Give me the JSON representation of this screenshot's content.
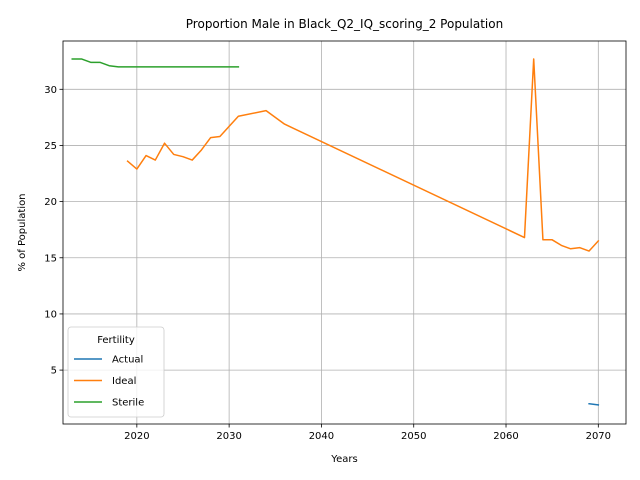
{
  "chart_data": {
    "type": "line",
    "title": "Proportion Male in Black_Q2_IQ_scoring_2 Population",
    "xlabel": "Years",
    "ylabel": "% of Population",
    "xlim": [
      2012,
      2073
    ],
    "ylim": [
      0.2,
      34.3
    ],
    "xticks": [
      2020,
      2030,
      2040,
      2050,
      2060,
      2070
    ],
    "yticks": [
      5,
      10,
      15,
      20,
      25,
      30
    ],
    "grid": true,
    "legend": {
      "title": "Fertility",
      "position": "lower-left"
    },
    "series": [
      {
        "name": "Actual",
        "color": "#1f77b4",
        "x": [
          2069,
          2070
        ],
        "y": [
          2.0,
          1.9
        ]
      },
      {
        "name": "Ideal",
        "color": "#ff7f0e",
        "x": [
          2019,
          2020,
          2021,
          2022,
          2023,
          2024,
          2025,
          2026,
          2027,
          2028,
          2029,
          2031,
          2034,
          2036,
          2062,
          2063,
          2064,
          2065,
          2066,
          2067,
          2068,
          2069,
          2070
        ],
        "y": [
          23.6,
          22.9,
          24.1,
          23.7,
          25.2,
          24.2,
          24.0,
          23.7,
          24.6,
          25.7,
          25.8,
          27.6,
          28.1,
          26.9,
          16.8,
          32.7,
          16.6,
          16.6,
          16.1,
          15.8,
          15.9,
          15.6,
          16.5
        ]
      },
      {
        "name": "Sterile",
        "color": "#2ca02c",
        "x": [
          2013,
          2014,
          2015,
          2016,
          2017,
          2018,
          2019,
          2020,
          2021,
          2022,
          2023,
          2024,
          2025,
          2026,
          2027,
          2028,
          2029,
          2030,
          2031
        ],
        "y": [
          32.7,
          32.7,
          32.4,
          32.4,
          32.1,
          32.0,
          32.0,
          32.0,
          32.0,
          32.0,
          32.0,
          32.0,
          32.0,
          32.0,
          32.0,
          32.0,
          32.0,
          32.0,
          32.0
        ]
      }
    ]
  }
}
